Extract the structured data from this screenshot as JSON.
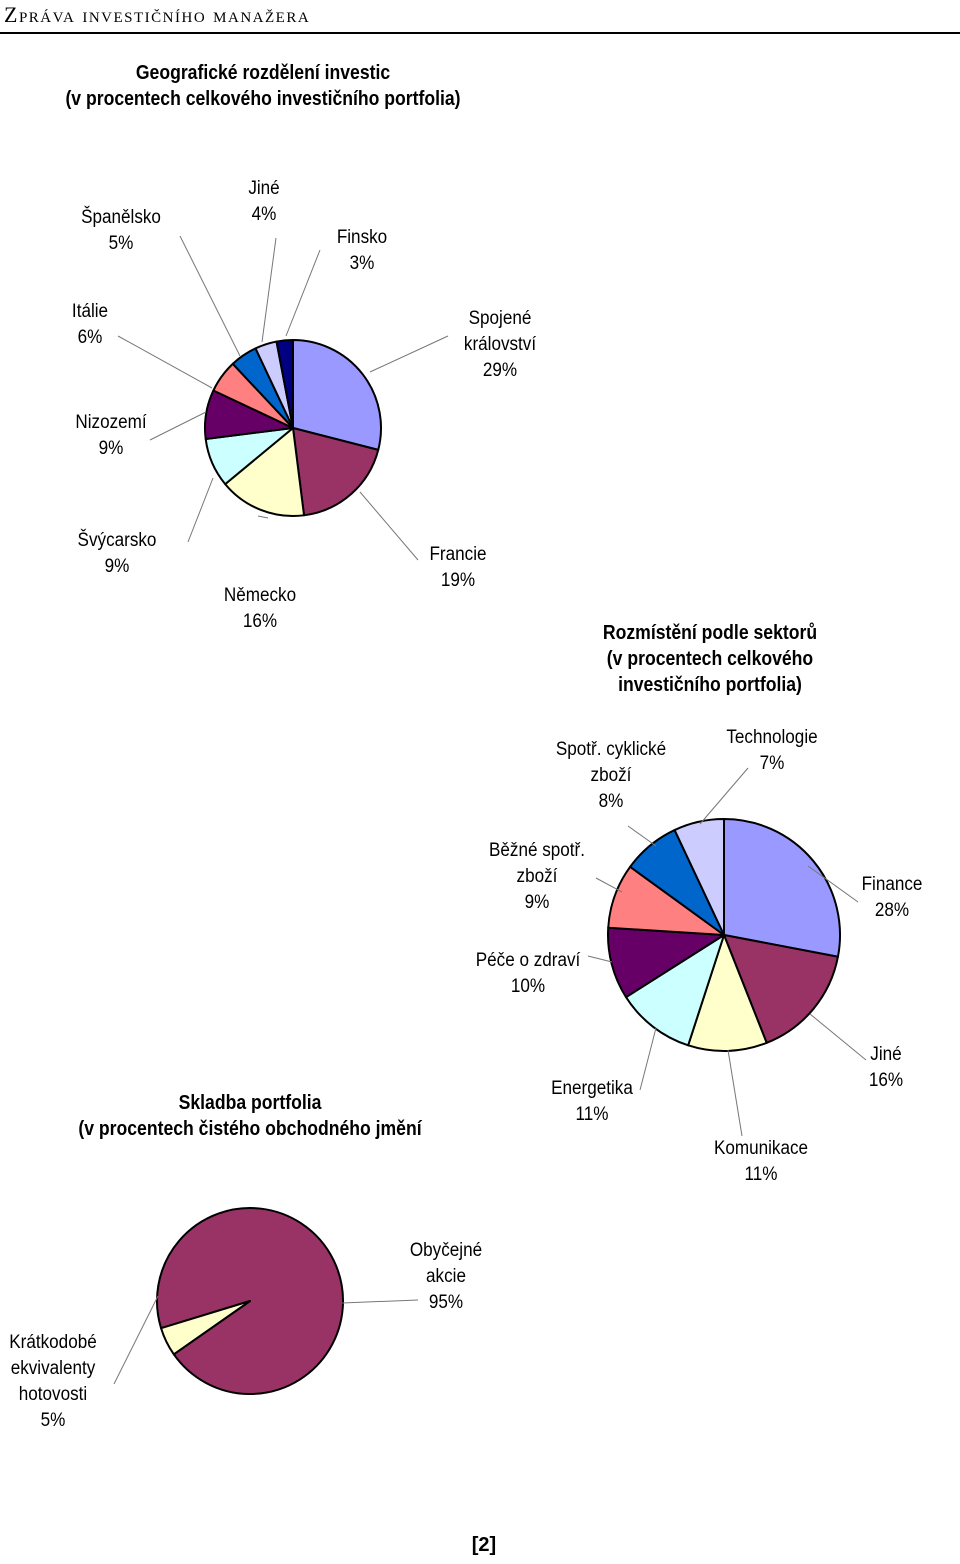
{
  "header": {
    "title": "Zpráva investičního manažera"
  },
  "page_number": "[2]",
  "chart_data": [
    {
      "type": "pie",
      "title_lines": [
        "Geografické rozdělení investic",
        "(v procentech celkového investičního portfolia)"
      ],
      "slices": [
        {
          "name_lines": [
            "Spojené",
            "království"
          ],
          "pct_label": "29%",
          "value": 29,
          "color": "#9999ff"
        },
        {
          "name_lines": [
            "Francie"
          ],
          "pct_label": "19%",
          "value": 19,
          "color": "#993366"
        },
        {
          "name_lines": [
            "Německo"
          ],
          "pct_label": "16%",
          "value": 16,
          "color": "#ffffcc"
        },
        {
          "name_lines": [
            "Švýcarsko"
          ],
          "pct_label": "9%",
          "value": 9,
          "color": "#ccffff"
        },
        {
          "name_lines": [
            "Nizozemí"
          ],
          "pct_label": "9%",
          "value": 9,
          "color": "#660066"
        },
        {
          "name_lines": [
            "Itálie"
          ],
          "pct_label": "6%",
          "value": 6,
          "color": "#ff8080"
        },
        {
          "name_lines": [
            "Španělsko"
          ],
          "pct_label": "5%",
          "value": 5,
          "color": "#0066cc"
        },
        {
          "name_lines": [
            "Jiné"
          ],
          "pct_label": "4%",
          "value": 4,
          "color": "#ccccff"
        },
        {
          "name_lines": [
            "Finsko"
          ],
          "pct_label": "3%",
          "value": 3,
          "color": "#000080"
        }
      ]
    },
    {
      "type": "pie",
      "title_lines": [
        "Rozmístění podle sektorů",
        "(v procentech celkového",
        "investičního portfolia)"
      ],
      "slices": [
        {
          "name_lines": [
            "Finance"
          ],
          "pct_label": "28%",
          "value": 28,
          "color": "#9999ff"
        },
        {
          "name_lines": [
            "Jiné"
          ],
          "pct_label": "16%",
          "value": 16,
          "color": "#993366"
        },
        {
          "name_lines": [
            "Komunikace"
          ],
          "pct_label": "11%",
          "value": 11,
          "color": "#ffffcc"
        },
        {
          "name_lines": [
            "Energetika"
          ],
          "pct_label": "11%",
          "value": 11,
          "color": "#ccffff"
        },
        {
          "name_lines": [
            "Péče o zdraví"
          ],
          "pct_label": "10%",
          "value": 10,
          "color": "#660066"
        },
        {
          "name_lines": [
            "Běžné spotř.",
            "zboží"
          ],
          "pct_label": "9%",
          "value": 9,
          "color": "#ff8080"
        },
        {
          "name_lines": [
            "Spotř. cyklické",
            "zboží"
          ],
          "pct_label": "8%",
          "value": 8,
          "color": "#0066cc"
        },
        {
          "name_lines": [
            "Technologie"
          ],
          "pct_label": "7%",
          "value": 7,
          "color": "#ccccff"
        }
      ]
    },
    {
      "type": "pie",
      "title_lines": [
        "Skladba portfolia",
        "(v procentech čistého obchodného jmění"
      ],
      "slices": [
        {
          "name_lines": [
            "Obyčejné",
            "akcie"
          ],
          "pct_label": "95%",
          "value": 95,
          "color": "#993366"
        },
        {
          "name_lines": [
            "Krátkodobé",
            "ekvivalenty",
            "hotovosti"
          ],
          "pct_label": "5%",
          "value": 5,
          "color": "#ffffcc"
        }
      ]
    }
  ]
}
